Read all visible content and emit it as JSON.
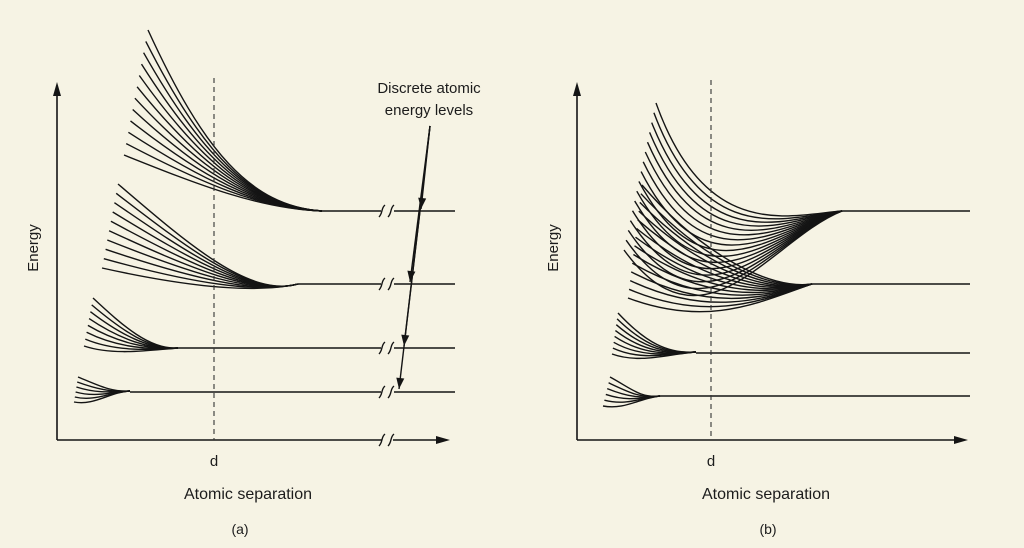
{
  "panels": [
    {
      "id": "a",
      "y_label": "Energy",
      "x_label": "Atomic separation",
      "d_label": "d",
      "caption": "(a)",
      "annotation": [
        "Discrete atomic",
        "energy levels"
      ],
      "axis_break": true
    },
    {
      "id": "b",
      "y_label": "Energy",
      "x_label": "Atomic separation",
      "d_label": "d",
      "caption": "(b)",
      "annotation": [],
      "axis_break": false
    }
  ],
  "colors": {
    "background": "#f6f3e4",
    "ink": "#141414"
  }
}
